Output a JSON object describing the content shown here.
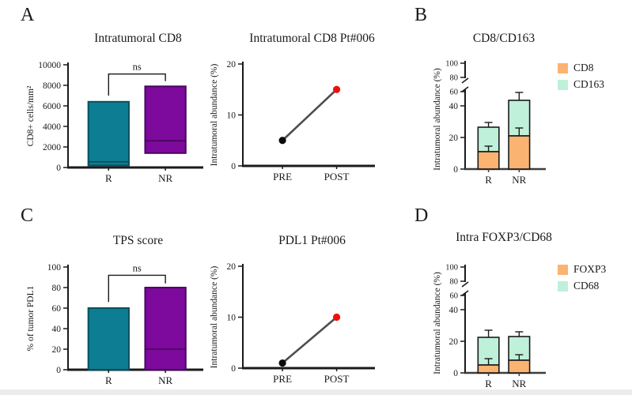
{
  "figure": {
    "background": "#ffffff",
    "panels": [
      {
        "letter": "A"
      },
      {
        "letter": "B"
      },
      {
        "letter": "C"
      },
      {
        "letter": "D"
      }
    ]
  },
  "chart_data": [
    {
      "id": "a1",
      "panel": "A",
      "type": "box",
      "title": "Intratumoral CD8",
      "ylabel": "CD8+ cells/mm²",
      "ylim": [
        0,
        10000
      ],
      "yticks": [
        0,
        2000,
        4000,
        6000,
        8000,
        10000
      ],
      "categories": [
        "R",
        "NR"
      ],
      "boxes": [
        {
          "category": "R",
          "min": 200,
          "max": 6400,
          "median": 550,
          "color": "#0C7D92",
          "border": "#05505F"
        },
        {
          "category": "NR",
          "min": 1400,
          "max": 7900,
          "median": 2600,
          "color": "#7D0A9C",
          "border": "#4A0560"
        }
      ],
      "significance": {
        "label": "ns",
        "bar_y": 9100,
        "left_leg_y": 7000,
        "right_leg_y": 8400
      }
    },
    {
      "id": "a2",
      "panel": "A",
      "type": "prepost",
      "title": "Intratumoral CD8 Pt#006",
      "ylabel": "Intratumoral abundance (%)",
      "ylim": [
        0,
        20
      ],
      "yticks": [
        0,
        10,
        20
      ],
      "categories": [
        "PRE",
        "POST"
      ],
      "points": [
        {
          "label": "PRE",
          "value": 5,
          "color": "#0a0a0a"
        },
        {
          "label": "POST",
          "value": 15,
          "color": "#F20D0D"
        }
      ],
      "line_color": "#4D4D4D"
    },
    {
      "id": "b",
      "panel": "B",
      "type": "stacked_broken",
      "title": "CD8/CD163",
      "ylabel": "Intratumoral abundance (%)",
      "yticks_lower": [
        0,
        20,
        40
      ],
      "yticks_upper": [
        60,
        80,
        100
      ],
      "axis_break": [
        50,
        60
      ],
      "categories": [
        "R",
        "NR"
      ],
      "legend": [
        {
          "label": "CD8",
          "color": "#FBB371"
        },
        {
          "label": "CD163",
          "color": "#BFF0DA"
        }
      ],
      "bars": [
        {
          "category": "R",
          "segments": [
            11,
            15.5
          ],
          "segment1_err_top": 14.5,
          "total_err_top": 29.5
        },
        {
          "category": "NR",
          "segments": [
            21,
            22.5
          ],
          "segment1_err_top": 26,
          "total_err_top": 48.5
        }
      ]
    },
    {
      "id": "c1",
      "panel": "C",
      "type": "box",
      "title": "TPS score",
      "ylabel": "% of tumor PDL1",
      "ylim": [
        0,
        100
      ],
      "yticks": [
        0,
        20,
        40,
        60,
        80,
        100
      ],
      "categories": [
        "R",
        "NR"
      ],
      "boxes": [
        {
          "category": "R",
          "min": 0,
          "max": 60,
          "median": null,
          "color": "#0C7D92",
          "border": "#05505F"
        },
        {
          "category": "NR",
          "min": 0,
          "max": 80,
          "median": 20,
          "color": "#7D0A9C",
          "border": "#4A0560"
        }
      ],
      "significance": {
        "label": "ns",
        "bar_y": 92,
        "left_leg_y": 66,
        "right_leg_y": 84
      }
    },
    {
      "id": "c2",
      "panel": "C",
      "type": "prepost",
      "title": "PDL1 Pt#006",
      "ylabel": "Intratumoral abundance (%)",
      "ylim": [
        0,
        20
      ],
      "yticks": [
        0,
        10,
        20
      ],
      "categories": [
        "PRE",
        "POST"
      ],
      "points": [
        {
          "label": "PRE",
          "value": 1,
          "color": "#0a0a0a"
        },
        {
          "label": "POST",
          "value": 10,
          "color": "#F20D0D"
        }
      ],
      "line_color": "#4D4D4D"
    },
    {
      "id": "d",
      "panel": "D",
      "type": "stacked_broken",
      "title": "Intra FOXP3/CD68",
      "ylabel": "Intratumoral abundance (%)",
      "yticks_lower": [
        0,
        20,
        40
      ],
      "yticks_upper": [
        60,
        80,
        100
      ],
      "axis_break": [
        50,
        60
      ],
      "categories": [
        "R",
        "NR"
      ],
      "legend": [
        {
          "label": "FOXP3",
          "color": "#FBB371"
        },
        {
          "label": "CD68",
          "color": "#BFF0DA"
        }
      ],
      "bars": [
        {
          "category": "R",
          "segments": [
            5,
            17.5
          ],
          "segment1_err_top": 9,
          "total_err_top": 27
        },
        {
          "category": "NR",
          "segments": [
            8,
            15
          ],
          "segment1_err_top": 11.5,
          "total_err_top": 26
        }
      ]
    }
  ]
}
